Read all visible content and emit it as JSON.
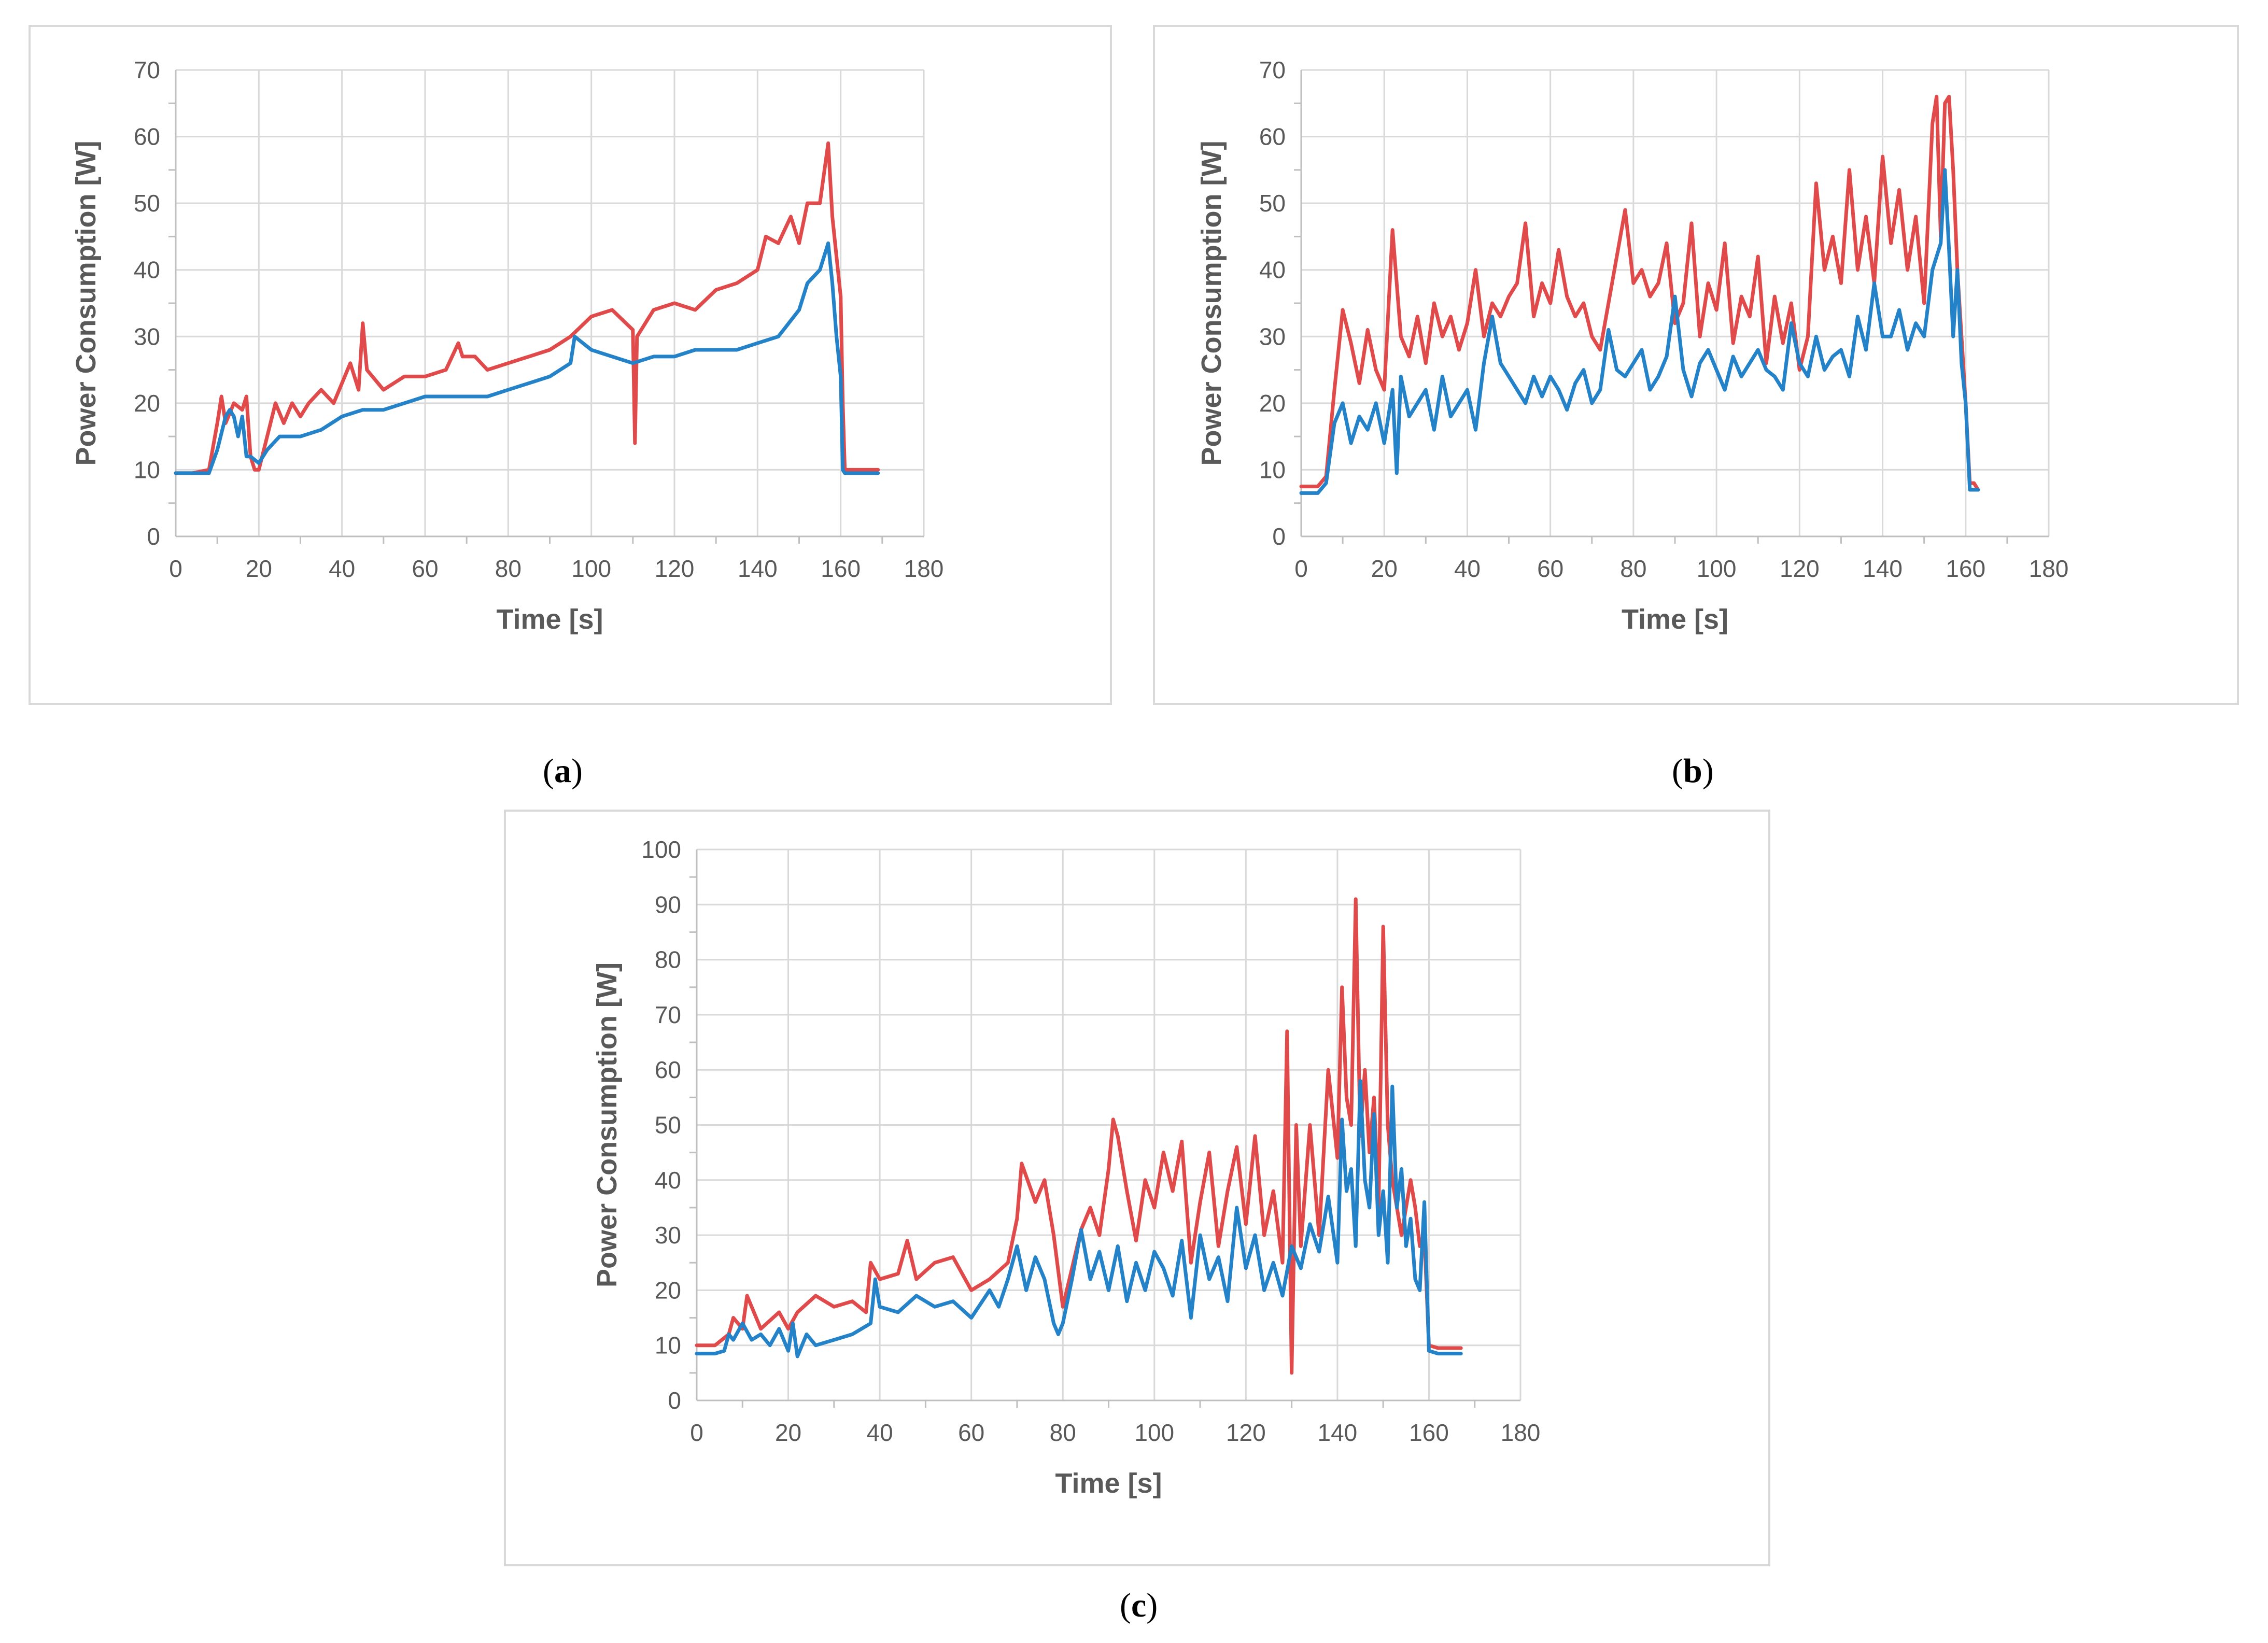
{
  "captions": {
    "a": "a",
    "b": "b",
    "c": "c"
  },
  "colors": {
    "series_red": "#e04a4a",
    "series_blue": "#2382c8",
    "grid": "#d9d9d9",
    "text": "#595959"
  },
  "chart_data": [
    {
      "id": "a",
      "type": "line",
      "xlabel": "Time [s]",
      "ylabel": "Power Consumption [W]",
      "xlim": [
        0,
        180
      ],
      "ylim": [
        0,
        70
      ],
      "xticks": [
        0,
        20,
        40,
        60,
        80,
        100,
        120,
        140,
        160,
        180
      ],
      "yticks": [
        0,
        10,
        20,
        30,
        40,
        50,
        60,
        70
      ],
      "grid": true,
      "legend": "none",
      "series": [
        {
          "color": "#e04a4a",
          "x": [
            0,
            4,
            8,
            10,
            11,
            12,
            14,
            16,
            17,
            18,
            19,
            20,
            22,
            24,
            26,
            28,
            30,
            32,
            35,
            38,
            40,
            42,
            44,
            45,
            46,
            50,
            55,
            60,
            65,
            68,
            69,
            72,
            75,
            80,
            85,
            90,
            95,
            100,
            105,
            110,
            110.5,
            111,
            115,
            120,
            125,
            130,
            135,
            140,
            142,
            145,
            148,
            150,
            152,
            155,
            157,
            158,
            159,
            160,
            160.5,
            161,
            165,
            169
          ],
          "y": [
            9.5,
            9.5,
            10,
            17,
            21,
            17,
            20,
            19,
            21,
            12,
            10,
            10,
            15,
            20,
            17,
            20,
            18,
            20,
            22,
            20,
            23,
            26,
            22,
            32,
            25,
            22,
            24,
            24,
            25,
            29,
            27,
            27,
            25,
            26,
            27,
            28,
            30,
            33,
            34,
            31,
            14,
            30,
            34,
            35,
            34,
            37,
            38,
            40,
            45,
            44,
            48,
            44,
            50,
            50,
            59,
            48,
            42,
            36,
            20,
            10,
            10,
            10
          ]
        },
        {
          "color": "#2382c8",
          "x": [
            0,
            4,
            8,
            10,
            12,
            13,
            14,
            15,
            16,
            17,
            18,
            20,
            22,
            25,
            30,
            35,
            40,
            45,
            50,
            55,
            60,
            65,
            70,
            75,
            80,
            85,
            90,
            95,
            96,
            100,
            105,
            110,
            115,
            120,
            125,
            130,
            135,
            140,
            145,
            150,
            152,
            155,
            157,
            158,
            159,
            160,
            160.5,
            161,
            165,
            169
          ],
          "y": [
            9.5,
            9.5,
            9.5,
            13,
            18,
            19,
            18,
            15,
            18,
            12,
            12,
            11,
            13,
            15,
            15,
            16,
            18,
            19,
            19,
            20,
            21,
            21,
            21,
            21,
            22,
            23,
            24,
            26,
            30,
            28,
            27,
            26,
            27,
            27,
            28,
            28,
            28,
            29,
            30,
            34,
            38,
            40,
            44,
            38,
            30,
            24,
            10,
            9.5,
            9.5,
            9.5
          ]
        }
      ]
    },
    {
      "id": "b",
      "type": "line",
      "xlabel": "Time [s]",
      "ylabel": "Power Consumption [W]",
      "xlim": [
        0,
        180
      ],
      "ylim": [
        0,
        70
      ],
      "xticks": [
        0,
        20,
        40,
        60,
        80,
        100,
        120,
        140,
        160,
        180
      ],
      "yticks": [
        0,
        10,
        20,
        30,
        40,
        50,
        60,
        70
      ],
      "grid": true,
      "legend": "none",
      "series": [
        {
          "color": "#e04a4a",
          "x": [
            0,
            4,
            6,
            8,
            10,
            12,
            14,
            16,
            18,
            20,
            22,
            24,
            26,
            28,
            30,
            32,
            34,
            36,
            38,
            40,
            42,
            44,
            46,
            48,
            50,
            52,
            54,
            56,
            58,
            60,
            62,
            64,
            66,
            68,
            70,
            72,
            74,
            76,
            78,
            80,
            82,
            84,
            86,
            88,
            90,
            92,
            94,
            96,
            98,
            100,
            102,
            104,
            106,
            108,
            110,
            112,
            114,
            116,
            118,
            120,
            122,
            124,
            126,
            128,
            130,
            132,
            134,
            136,
            138,
            140,
            142,
            144,
            146,
            148,
            150,
            152,
            153,
            154,
            155,
            156,
            157,
            158,
            159,
            160,
            161,
            162,
            163
          ],
          "y": [
            7.5,
            7.5,
            9,
            22,
            34,
            29,
            23,
            31,
            25,
            22,
            46,
            30,
            27,
            33,
            26,
            35,
            30,
            33,
            28,
            32,
            40,
            30,
            35,
            33,
            36,
            38,
            47,
            33,
            38,
            35,
            43,
            36,
            33,
            35,
            30,
            28,
            35,
            42,
            49,
            38,
            40,
            36,
            38,
            44,
            32,
            35,
            47,
            30,
            38,
            34,
            44,
            29,
            36,
            33,
            42,
            26,
            36,
            29,
            35,
            25,
            30,
            53,
            40,
            45,
            38,
            55,
            40,
            48,
            38,
            57,
            44,
            52,
            40,
            48,
            35,
            62,
            66,
            45,
            65,
            66,
            55,
            40,
            30,
            20,
            8,
            8,
            7
          ]
        },
        {
          "color": "#2382c8",
          "x": [
            0,
            4,
            6,
            8,
            10,
            12,
            14,
            16,
            18,
            20,
            22,
            23,
            24,
            26,
            28,
            30,
            32,
            34,
            36,
            38,
            40,
            42,
            44,
            46,
            48,
            50,
            52,
            54,
            56,
            58,
            60,
            62,
            64,
            66,
            68,
            70,
            72,
            74,
            76,
            78,
            80,
            82,
            84,
            86,
            88,
            90,
            92,
            94,
            96,
            98,
            100,
            102,
            104,
            106,
            108,
            110,
            112,
            114,
            116,
            118,
            120,
            122,
            124,
            126,
            128,
            130,
            132,
            134,
            136,
            138,
            140,
            142,
            144,
            146,
            148,
            150,
            152,
            154,
            155,
            156,
            157,
            158,
            159,
            160,
            161,
            162,
            163
          ],
          "y": [
            6.5,
            6.5,
            8,
            17,
            20,
            14,
            18,
            16,
            20,
            14,
            22,
            9.5,
            24,
            18,
            20,
            22,
            16,
            24,
            18,
            20,
            22,
            16,
            26,
            33,
            26,
            24,
            22,
            20,
            24,
            21,
            24,
            22,
            19,
            23,
            25,
            20,
            22,
            31,
            25,
            24,
            26,
            28,
            22,
            24,
            27,
            36,
            25,
            21,
            26,
            28,
            25,
            22,
            27,
            24,
            26,
            28,
            25,
            24,
            22,
            32,
            26,
            24,
            30,
            25,
            27,
            28,
            24,
            33,
            28,
            38,
            30,
            30,
            34,
            28,
            32,
            30,
            40,
            44,
            55,
            43,
            30,
            40,
            26,
            20,
            7,
            7,
            7
          ]
        }
      ]
    },
    {
      "id": "c",
      "type": "line",
      "xlabel": "Time [s]",
      "ylabel": "Power Consumption [W]",
      "xlim": [
        0,
        180
      ],
      "ylim": [
        0,
        100
      ],
      "xticks": [
        0,
        20,
        40,
        60,
        80,
        100,
        120,
        140,
        160,
        180
      ],
      "yticks": [
        0,
        10,
        20,
        30,
        40,
        50,
        60,
        70,
        80,
        90,
        100
      ],
      "grid": true,
      "legend": "none",
      "series": [
        {
          "color": "#e04a4a",
          "x": [
            0,
            4,
            7,
            8,
            10,
            11,
            14,
            18,
            20,
            22,
            26,
            30,
            34,
            37,
            38,
            40,
            44,
            46,
            48,
            52,
            56,
            60,
            64,
            68,
            70,
            71,
            74,
            76,
            78,
            80,
            82,
            84,
            86,
            88,
            90,
            91,
            92,
            94,
            96,
            98,
            100,
            102,
            104,
            106,
            108,
            110,
            112,
            114,
            116,
            118,
            120,
            122,
            124,
            126,
            128,
            129,
            130,
            131,
            132,
            134,
            136,
            138,
            140,
            141,
            142,
            143,
            144,
            145,
            146,
            147,
            148,
            149,
            150,
            151,
            152,
            154,
            156,
            157,
            158,
            159,
            160,
            162,
            167
          ],
          "y": [
            10,
            10,
            12,
            15,
            13,
            19,
            13,
            16,
            13,
            16,
            19,
            17,
            18,
            16,
            25,
            22,
            23,
            29,
            22,
            25,
            26,
            20,
            22,
            25,
            33,
            43,
            36,
            40,
            30,
            17,
            24,
            31,
            35,
            30,
            42,
            51,
            48,
            38,
            29,
            40,
            35,
            45,
            38,
            47,
            25,
            36,
            45,
            28,
            38,
            46,
            32,
            48,
            30,
            38,
            25,
            67,
            5,
            50,
            28,
            50,
            30,
            60,
            44,
            75,
            55,
            50,
            91,
            48,
            60,
            45,
            55,
            35,
            86,
            50,
            40,
            30,
            40,
            35,
            28,
            30,
            10,
            9.5,
            9.5
          ]
        },
        {
          "color": "#2382c8",
          "x": [
            0,
            4,
            6,
            7,
            8,
            10,
            12,
            14,
            16,
            18,
            20,
            21,
            22,
            24,
            26,
            30,
            34,
            38,
            39,
            40,
            44,
            48,
            52,
            56,
            60,
            64,
            66,
            68,
            70,
            72,
            74,
            76,
            78,
            79,
            80,
            82,
            84,
            86,
            88,
            90,
            92,
            94,
            96,
            98,
            100,
            102,
            104,
            106,
            108,
            110,
            112,
            114,
            116,
            118,
            120,
            122,
            124,
            126,
            128,
            130,
            132,
            134,
            136,
            138,
            140,
            141,
            142,
            143,
            144,
            145,
            146,
            147,
            148,
            149,
            150,
            151,
            152,
            153,
            154,
            155,
            156,
            157,
            158,
            159,
            160,
            162,
            167
          ],
          "y": [
            8.5,
            8.5,
            9,
            12,
            11,
            14,
            11,
            12,
            10,
            13,
            9,
            14,
            8,
            12,
            10,
            11,
            12,
            14,
            22,
            17,
            16,
            19,
            17,
            18,
            15,
            20,
            17,
            22,
            28,
            20,
            26,
            22,
            14,
            12,
            14,
            22,
            31,
            22,
            27,
            20,
            28,
            18,
            25,
            20,
            27,
            24,
            19,
            29,
            15,
            30,
            22,
            26,
            18,
            35,
            24,
            30,
            20,
            25,
            19,
            28,
            24,
            32,
            27,
            37,
            25,
            51,
            38,
            42,
            28,
            58,
            40,
            35,
            52,
            30,
            38,
            25,
            57,
            35,
            42,
            28,
            33,
            22,
            20,
            36,
            9,
            8.5,
            8.5
          ]
        }
      ]
    }
  ]
}
